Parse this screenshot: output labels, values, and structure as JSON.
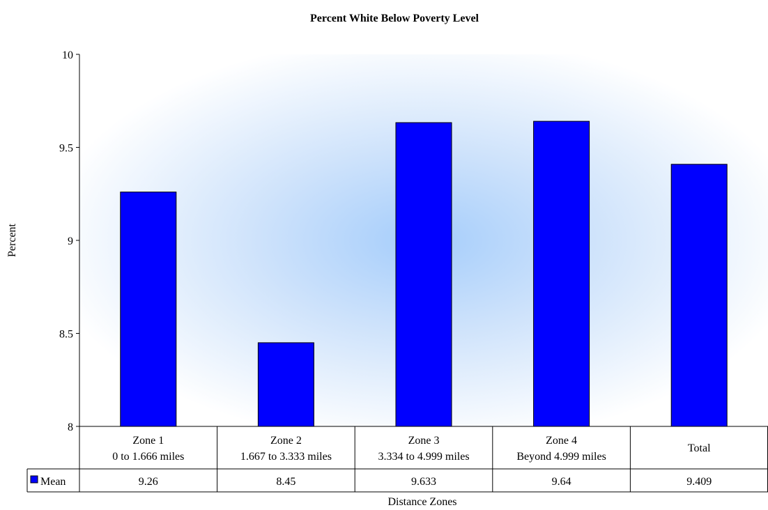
{
  "chart_data": {
    "type": "bar",
    "title": "Percent White Below Poverty Level",
    "ylabel": "Percent",
    "xlabel": "Distance Zones",
    "ylim": [
      8,
      10
    ],
    "yticks": [
      "8",
      "8.5",
      "9",
      "9.5",
      "10"
    ],
    "grid": false,
    "legend": "data-table",
    "categories": [
      {
        "line1": "Zone 1",
        "line2": "0 to 1.666 miles"
      },
      {
        "line1": "Zone 2",
        "line2": "1.667 to 3.333 miles"
      },
      {
        "line1": "Zone 3",
        "line2": "3.334 to 4.999 miles"
      },
      {
        "line1": "Zone 4",
        "line2": "Beyond 4.999 miles"
      },
      {
        "line1": "Total",
        "line2": ""
      }
    ],
    "series": [
      {
        "name": "Mean",
        "values": [
          9.26,
          8.45,
          9.633,
          9.64,
          9.409
        ],
        "labels": [
          "9.26",
          "8.45",
          "9.633",
          "9.64",
          "9.409"
        ],
        "color": "#0000ff"
      }
    ]
  }
}
